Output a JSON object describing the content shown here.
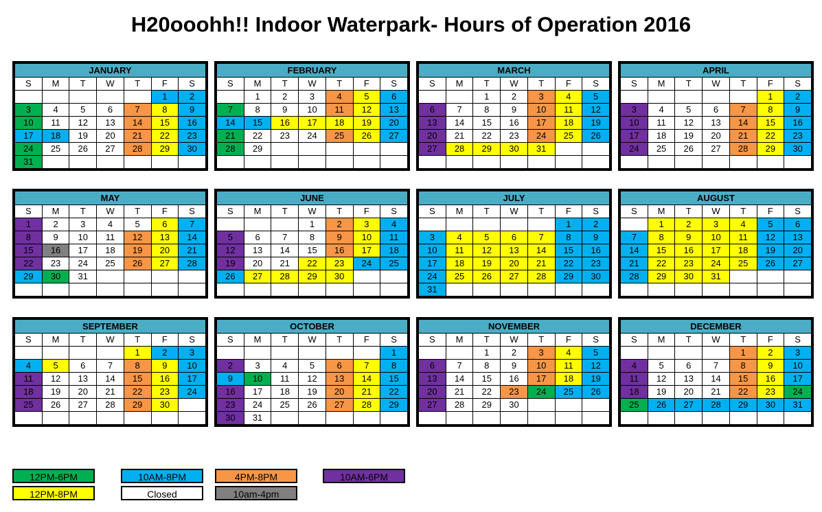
{
  "title": "H20ooohh!! Indoor Waterpark- Hours of Operation 2016",
  "day_names": [
    "S",
    "M",
    "T",
    "W",
    "T",
    "F",
    "S"
  ],
  "colors": {
    "G": "#00B050",
    "B": "#00B0F0",
    "O": "#F79646",
    "Y": "#FFFF00",
    "P": "#7030A0",
    "R": "#808080",
    "W": "#FFFFFF"
  },
  "legend": [
    {
      "label": "12PM-6PM",
      "color": "G"
    },
    {
      "label": "12PM-8PM",
      "color": "Y"
    },
    {
      "label": "10AM-8PM",
      "color": "B"
    },
    {
      "label": "Closed",
      "color": "W"
    },
    {
      "label": "4PM-8PM",
      "color": "O"
    },
    {
      "label": "10am-4pm",
      "color": "R"
    },
    {
      "label": "10AM-6PM",
      "color": "P"
    }
  ],
  "months": [
    {
      "name": "JANUARY",
      "start": 5,
      "days": 31,
      "colors": "BB GWWWOYB GWWWOYB BBWWOYB GWWWOYB G"
    },
    {
      "name": "FEBRUARY",
      "start": 1,
      "days": 29,
      "colors": "WWWOYB GWWWOYB BBYYYYB GWWWOYB GW"
    },
    {
      "name": "MARCH",
      "start": 2,
      "days": 31,
      "colors": "WWOYB PWWWOYB PWWWOYB PWWWOYB PYYYY"
    },
    {
      "name": "APRIL",
      "start": 5,
      "days": 30,
      "colors": "YB PWWWOYB PWWWOYB PWWWOYB PWWWOYB"
    },
    {
      "name": "MAY",
      "start": 0,
      "days": 31,
      "colors": "PWWWWYB PWWWOYB PRWWOYB PWWWOYB BGW"
    },
    {
      "name": "JUNE",
      "start": 3,
      "days": 30,
      "colors": "WOYB PWWWOYB PWWWOYB PWWYYBB BYYYY"
    },
    {
      "name": "JULY",
      "start": 5,
      "days": 31,
      "colors": "BB BYYYYBB BYYYYBB BYYYYBB BYYYYBB B"
    },
    {
      "name": "AUGUST",
      "start": 1,
      "days": 31,
      "colors": "YYYYBB BYYYYBB BYYYYBB BYYYYBB BYYY"
    },
    {
      "name": "SEPTEMBER",
      "start": 4,
      "days": 30,
      "colors": "YBB BYWWOYB PWWWOYB PWWWOYB PWWWOY"
    },
    {
      "name": "OCTOBER",
      "start": 6,
      "days": 31,
      "colors": "B PWWWOYB BGWWOYB PWWWOYB PWWWOYB PW"
    },
    {
      "name": "NOVEMBER",
      "start": 2,
      "days": 30,
      "colors": "WWOYB PWWWOYB PWWWOYB PWWOGBB PWWW"
    },
    {
      "name": "DECEMBER",
      "start": 4,
      "days": 31,
      "colors": "OYB PWWWOYB PWWWOYB PWWWOYG GBBBBBB"
    }
  ]
}
